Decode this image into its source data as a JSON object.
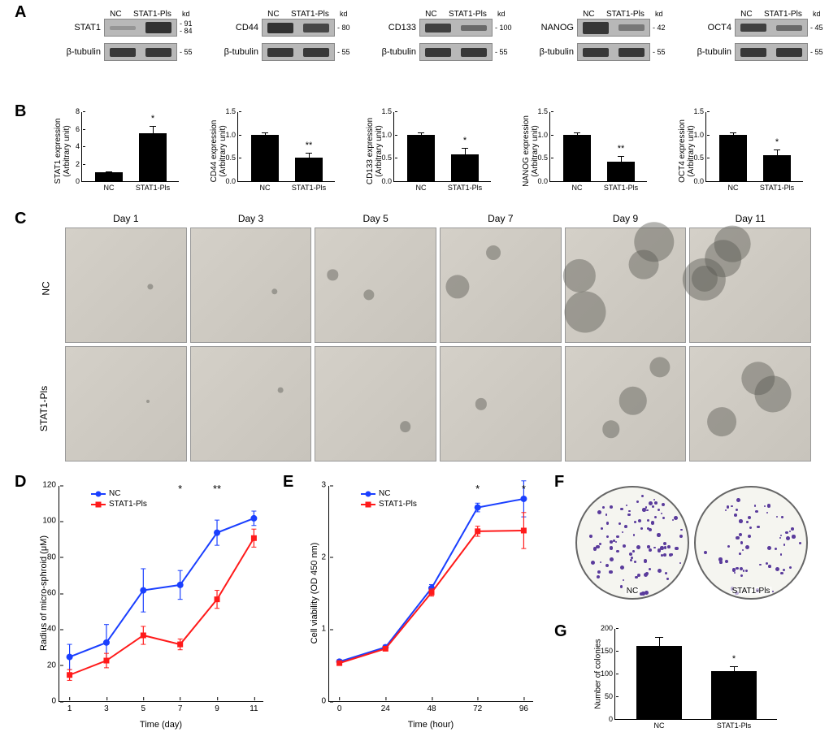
{
  "colors": {
    "nc_line": "#1a3fff",
    "stat1_line": "#ff1a1a",
    "bar_fill": "#000000",
    "colony": "#5a3b9c",
    "axis": "#000000",
    "micro_bg1": "#d4d0c8",
    "micro_bg2": "#c8c4bc"
  },
  "panelA": {
    "lane_labels": [
      "NC",
      "STAT1-Pls"
    ],
    "kd_label": "kd",
    "loading_control": "β-tubulin",
    "loading_mw": "55",
    "blots": [
      {
        "target": "STAT1",
        "mw": [
          "91",
          "84"
        ],
        "band_intensity": [
          0.25,
          0.95
        ],
        "band_h": [
          5,
          14
        ]
      },
      {
        "target": "CD44",
        "mw": [
          "80"
        ],
        "band_intensity": [
          0.95,
          0.8
        ],
        "band_h": [
          13,
          11
        ]
      },
      {
        "target": "CD133",
        "mw": [
          "100"
        ],
        "band_intensity": [
          0.85,
          0.55
        ],
        "band_h": [
          11,
          7
        ]
      },
      {
        "target": "NANOG",
        "mw": [
          "42"
        ],
        "band_intensity": [
          0.92,
          0.45
        ],
        "band_h": [
          15,
          8
        ]
      },
      {
        "target": "OCT4",
        "mw": [
          "45"
        ],
        "band_intensity": [
          0.85,
          0.55
        ],
        "band_h": [
          10,
          7
        ]
      }
    ]
  },
  "panelB": {
    "x_labels": [
      "NC",
      "STAT1-Pls"
    ],
    "charts": [
      {
        "ylabel_top": "STAT1 expression",
        "ylabel_bot": "(Arbitrary unit)",
        "ymax": 8,
        "ytick_step": 2,
        "bars": [
          1.0,
          5.5
        ],
        "err": [
          0.05,
          0.7
        ],
        "sig": "*"
      },
      {
        "ylabel_top": "CD44 expression",
        "ylabel_bot": "(Arbitrary unit)",
        "ymax": 1.5,
        "ytick_step": 0.5,
        "bars": [
          1.0,
          0.5
        ],
        "err": [
          0.03,
          0.09
        ],
        "sig": "**"
      },
      {
        "ylabel_top": "CD133 expression",
        "ylabel_bot": "(Arbitrary unit)",
        "ymax": 1.5,
        "ytick_step": 0.5,
        "bars": [
          1.0,
          0.58
        ],
        "err": [
          0.03,
          0.12
        ],
        "sig": "*"
      },
      {
        "ylabel_top": "NANOG expression",
        "ylabel_bot": "(Arbitrary unit)",
        "ymax": 1.5,
        "ytick_step": 0.5,
        "bars": [
          1.0,
          0.42
        ],
        "err": [
          0.03,
          0.11
        ],
        "sig": "**"
      },
      {
        "ylabel_top": "OCT4 expression",
        "ylabel_bot": "(Arbitrary unit)",
        "ymax": 1.5,
        "ytick_step": 0.5,
        "bars": [
          1.0,
          0.55
        ],
        "err": [
          0.03,
          0.11
        ],
        "sig": "*"
      }
    ]
  },
  "panelC": {
    "col_labels": [
      "Day 1",
      "Day 3",
      "Day 5",
      "Day 7",
      "Day 9",
      "Day 11"
    ],
    "row_labels": [
      "NC",
      "STAT1-Pls"
    ],
    "sphere_sizes": {
      "NC": [
        6,
        10,
        22,
        26,
        44,
        50
      ],
      "STAT1": [
        4,
        6,
        13,
        14,
        30,
        38
      ]
    }
  },
  "panelD": {
    "type": "line",
    "ylabel": "Radius of micro-sphroid (μM)",
    "xlabel": "Time (day)",
    "x": [
      1,
      3,
      5,
      7,
      9,
      11
    ],
    "ylim": [
      0,
      120
    ],
    "ytick_step": 20,
    "series": [
      {
        "name": "NC",
        "color": "#1a3fff",
        "marker": "circle",
        "y": [
          25,
          33,
          62,
          65,
          94,
          102
        ],
        "err": [
          7,
          10,
          12,
          8,
          7,
          4
        ]
      },
      {
        "name": "STAT1-Pls",
        "color": "#ff1a1a",
        "marker": "square",
        "y": [
          15,
          23,
          37,
          32,
          57,
          91
        ],
        "err": [
          3,
          4,
          5,
          3,
          5,
          5
        ]
      }
    ],
    "sig": [
      {
        "x": 7,
        "label": "*"
      },
      {
        "x": 9,
        "label": "**"
      }
    ]
  },
  "panelE": {
    "type": "line",
    "ylabel": "Cell viability (OD 450 nm)",
    "xlabel": "Time (hour)",
    "x": [
      0,
      24,
      48,
      72,
      96
    ],
    "ylim": [
      0,
      3
    ],
    "ytick_step": 1,
    "series": [
      {
        "name": "NC",
        "color": "#1a3fff",
        "marker": "circle",
        "y": [
          0.56,
          0.76,
          1.58,
          2.7,
          2.82
        ],
        "err": [
          0.03,
          0.03,
          0.05,
          0.06,
          0.25
        ]
      },
      {
        "name": "STAT1-Pls",
        "color": "#ff1a1a",
        "marker": "square",
        "y": [
          0.54,
          0.74,
          1.52,
          2.37,
          2.38
        ],
        "err": [
          0.03,
          0.03,
          0.05,
          0.07,
          0.25
        ]
      }
    ],
    "sig": [
      {
        "x": 72,
        "label": "*"
      },
      {
        "x": 96,
        "label": "*"
      }
    ]
  },
  "panelF": {
    "labels": [
      "NC",
      "STAT1-Pls"
    ],
    "colony_counts_visual": [
      160,
      100
    ]
  },
  "panelG": {
    "type": "bar",
    "ylabel": "Number of colonies",
    "ymax": 200,
    "ytick_step": 50,
    "x_labels": [
      "NC",
      "STAT1-Pls"
    ],
    "bars": [
      160,
      105
    ],
    "err": [
      18,
      10
    ],
    "sig": "*"
  }
}
